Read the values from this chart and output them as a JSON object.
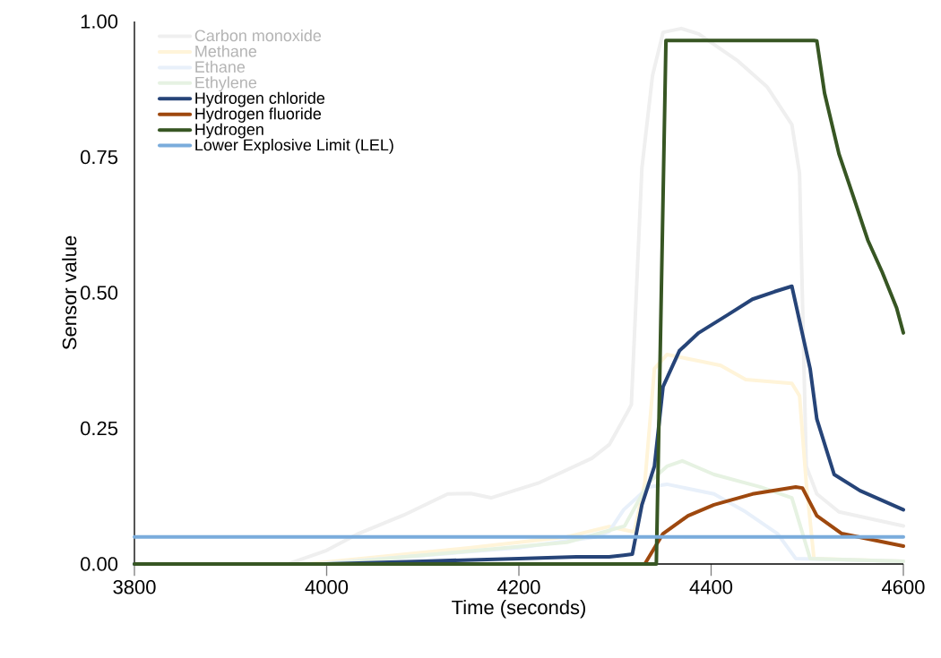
{
  "chart_data": {
    "type": "line",
    "xlabel": "Time (seconds)",
    "ylabel": "Sensor value",
    "xlim": [
      3800,
      4600
    ],
    "ylim": [
      0,
      1
    ],
    "xticks": [
      3800,
      4000,
      4200,
      4400,
      4600
    ],
    "yticks": [
      {
        "value": 0,
        "label": "0.00"
      },
      {
        "value": 0.25,
        "label": "0.25"
      },
      {
        "value": 0.5,
        "label": "0.50"
      },
      {
        "value": 0.75,
        "label": "0.75"
      },
      {
        "value": 1,
        "label": "1.00"
      }
    ],
    "legend": "top left",
    "grid": false,
    "marker": "none",
    "line_style": "solid",
    "series": [
      {
        "name": "Carbon monoxide",
        "color": "#efefef",
        "x": [
          3800,
          3960,
          4000,
          4033,
          4080,
          4126,
          4150,
          4171,
          4220,
          4276,
          4294,
          4313,
          4317,
          4328,
          4339,
          4350,
          4369,
          4387,
          4428,
          4458,
          4484,
          4492,
          4499,
          4510,
          4533,
          4600
        ],
        "values": [
          0,
          0,
          0.025,
          0.056,
          0.09,
          0.129,
          0.13,
          0.122,
          0.149,
          0.195,
          0.22,
          0.28,
          0.294,
          0.73,
          0.9,
          0.98,
          0.987,
          0.977,
          0.927,
          0.88,
          0.81,
          0.72,
          0.18,
          0.129,
          0.096,
          0.07
        ]
      },
      {
        "name": "Methane",
        "color": "#fff4d9",
        "x": [
          3800,
          3980,
          4150,
          4250,
          4294,
          4320,
          4331,
          4341,
          4354,
          4391,
          4410,
          4436,
          4484,
          4492,
          4499,
          4507,
          4600
        ],
        "values": [
          0,
          0,
          0.03,
          0.05,
          0.069,
          0.059,
          0.149,
          0.36,
          0.386,
          0.373,
          0.366,
          0.34,
          0.333,
          0.31,
          0.149,
          0.01,
          0.005
        ]
      },
      {
        "name": "Ethane",
        "color": "#e8f0fa",
        "x": [
          3800,
          3990,
          4200,
          4280,
          4294,
          4309,
          4335,
          4354,
          4403,
          4436,
          4469,
          4488,
          4600
        ],
        "values": [
          0,
          0,
          0.03,
          0.05,
          0.06,
          0.1,
          0.142,
          0.147,
          0.129,
          0.096,
          0.056,
          0.01,
          0.005
        ]
      },
      {
        "name": "Ethylene",
        "color": "#e6f2e2",
        "x": [
          3800,
          4000,
          4250,
          4310,
          4335,
          4354,
          4370,
          4403,
          4451,
          4484,
          4503,
          4600
        ],
        "values": [
          0,
          0,
          0.04,
          0.07,
          0.15,
          0.18,
          0.19,
          0.165,
          0.142,
          0.122,
          0.01,
          0.005
        ]
      },
      {
        "name": "Hydrogen chloride",
        "color": "#264478",
        "x": [
          3800,
          4000,
          4100,
          4200,
          4260,
          4294,
          4309,
          4318,
          4328,
          4341,
          4350,
          4367,
          4387,
          4417,
          4443,
          4466,
          4484,
          4503,
          4510,
          4528,
          4555,
          4600
        ],
        "values": [
          0,
          0,
          0.005,
          0.01,
          0.013,
          0.013,
          0.016,
          0.018,
          0.109,
          0.18,
          0.327,
          0.393,
          0.426,
          0.459,
          0.488,
          0.502,
          0.512,
          0.36,
          0.267,
          0.165,
          0.135,
          0.1
        ]
      },
      {
        "name": "Hydrogen fluoride",
        "color": "#9e480e",
        "x": [
          4331,
          4350,
          4376,
          4403,
          4443,
          4488,
          4495,
          4510,
          4536,
          4600
        ],
        "values": [
          0,
          0.056,
          0.089,
          0.109,
          0.129,
          0.142,
          0.14,
          0.089,
          0.056,
          0.033
        ]
      },
      {
        "name": "Hydrogen",
        "color": "#375623",
        "x": [
          3800,
          4343,
          4353,
          4507,
          4510,
          4518,
          4533,
          4548,
          4563,
          4578,
          4593,
          4600
        ],
        "values": [
          0,
          0,
          0.965,
          0.965,
          0.964,
          0.868,
          0.756,
          0.677,
          0.597,
          0.538,
          0.472,
          0.426
        ]
      },
      {
        "name": "Lower Explosive Limit (LEL)",
        "color": "#7aacdc",
        "x": [
          3800,
          4600
        ],
        "values": [
          0.05,
          0.05
        ]
      }
    ]
  }
}
